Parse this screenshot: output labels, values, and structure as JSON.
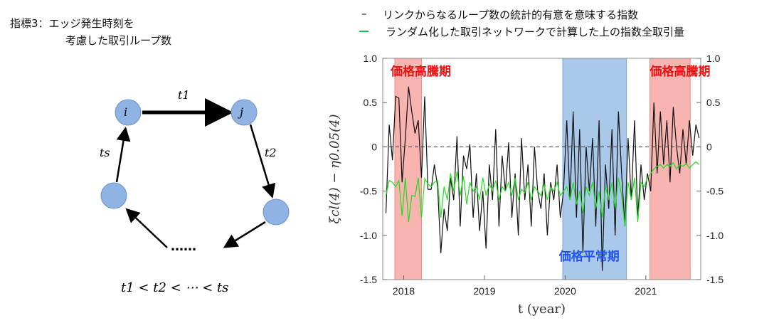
{
  "left_panel": {
    "title_line1": "指標3：エッジ発生時刻を",
    "title_line2": "考慮した取引ループ数",
    "nodes": [
      "i",
      "j"
    ],
    "edge_labels": [
      "t1",
      "t2",
      "ts"
    ],
    "ellipsis": "……",
    "formula": "t1 < t2 < ⋯ < ts"
  },
  "chart_data": {
    "type": "line",
    "xlabel": "t (year)",
    "ylabel": "ξcl(4) − η0.05(4)",
    "xlim": [
      2017.74,
      2021.68
    ],
    "ylim": [
      -1.5,
      1.0
    ],
    "x_ticks": [
      "2018",
      "2019",
      "2020",
      "2021"
    ],
    "y_ticks": [
      "1.0",
      "0.5",
      "0",
      "-0.5",
      "-1.0",
      "-1.5"
    ],
    "reference_line": 0,
    "x_range_of_series": [
      2017.78,
      2021.66
    ],
    "legend": [
      {
        "marker": "–",
        "label": "リンクからなるループ数の統計的有意を意味する指数",
        "color": "#111111"
      },
      {
        "marker": "—",
        "label": "ランダム化した取引ネットワークで計算した上の指数全取引量",
        "color": "#22bb44"
      }
    ],
    "regions": [
      {
        "label": "価格高騰期",
        "from": 2017.89,
        "to": 2018.22,
        "color": "#f8b4b0",
        "label_color": "#ee1111"
      },
      {
        "label": "価格平常期",
        "from": 2019.97,
        "to": 2020.76,
        "color": "#a9c8ea",
        "label_color": "#2255ee"
      },
      {
        "label": "価格高騰期",
        "from": 2021.05,
        "to": 2021.55,
        "color": "#f8b4b0",
        "label_color": "#ee1111"
      }
    ],
    "series": [
      {
        "name": "black",
        "color": "#111111",
        "values": [
          -0.75,
          0.25,
          -0.15,
          0.57,
          0.55,
          -0.4,
          0.1,
          0.68,
          0.4,
          0.15,
          0.3,
          -0.35,
          0.57,
          -0.48,
          -0.48,
          -0.2,
          -0.45,
          -1.2,
          -0.7,
          -0.95,
          -0.35,
          -0.6,
          0.12,
          -0.9,
          -0.1,
          -0.25,
          0.03,
          -0.8,
          -0.3,
          -0.95,
          -0.5,
          -1.15,
          -0.2,
          -0.6,
          0.2,
          -0.9,
          -0.1,
          -0.5,
          0.05,
          -0.8,
          -0.3,
          -1.0,
          0.1,
          -0.6,
          -0.2,
          -0.9,
          0.0,
          -0.5,
          -0.7,
          -0.3,
          -1.0,
          -0.4,
          -0.6,
          -0.2,
          -0.8,
          -0.5,
          0.3,
          -0.6,
          0.4,
          -0.8,
          0.2,
          -1.2,
          0.0,
          -0.5,
          0.1,
          -0.9,
          0.3,
          -1.4,
          -0.2,
          -0.7,
          0.2,
          -1.0,
          0.4,
          -0.3,
          -0.9,
          0.1,
          -0.6,
          0.3,
          -0.8,
          -0.2,
          -0.6,
          -0.3,
          -0.5,
          0.5,
          -0.3,
          0.4,
          -0.2,
          0.3,
          -0.4,
          0.45,
          0.0,
          -0.3,
          0.2,
          -0.2,
          0.3,
          -0.1,
          0.25,
          0.1
        ]
      },
      {
        "name": "green",
        "color": "#22dd22",
        "values": [
          -0.55,
          -0.38,
          -0.4,
          -0.45,
          -0.38,
          -0.78,
          -0.35,
          -0.85,
          -0.55,
          -0.56,
          -0.35,
          -0.8,
          -0.36,
          -0.42,
          -0.45,
          -0.4,
          -0.38,
          -0.8,
          -0.45,
          -0.6,
          -0.3,
          -0.5,
          -0.28,
          -0.55,
          -0.33,
          -0.65,
          -0.4,
          -0.5,
          -0.45,
          -0.6,
          -0.35,
          -0.55,
          -0.42,
          -0.5,
          -0.38,
          -0.6,
          -0.45,
          -0.5,
          -0.4,
          -0.55,
          -0.35,
          -0.6,
          -0.48,
          -0.52,
          -0.4,
          -0.6,
          -0.45,
          -0.5,
          -0.55,
          -0.42,
          -0.6,
          -0.45,
          -0.5,
          -0.4,
          -0.55,
          -0.5,
          -0.45,
          -0.6,
          -0.4,
          -0.65,
          -0.5,
          -0.75,
          -0.45,
          -0.55,
          -0.4,
          -0.7,
          -0.5,
          -0.8,
          -0.45,
          -0.6,
          -0.4,
          -0.7,
          -0.35,
          -0.55,
          -0.9,
          -0.4,
          -0.6,
          -0.35,
          -0.85,
          -0.4,
          -0.45,
          -0.35,
          -0.3,
          -0.25,
          -0.22,
          -0.2,
          -0.24,
          -0.2,
          -0.22,
          -0.18,
          -0.25,
          -0.2,
          -0.22,
          -0.19,
          -0.24,
          -0.2,
          -0.17,
          -0.2
        ]
      }
    ]
  }
}
